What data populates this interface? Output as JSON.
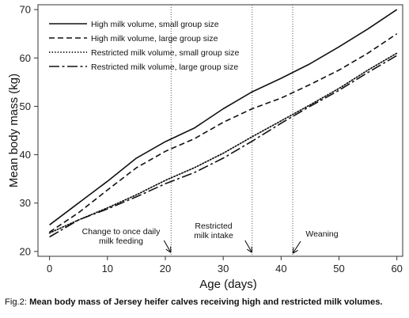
{
  "chart_data": {
    "type": "line",
    "xlabel": "Age (days)",
    "ylabel": "Mean body mass (kg)",
    "xlim": [
      -2,
      61
    ],
    "ylim": [
      19,
      71
    ],
    "xticks": [
      0,
      10,
      20,
      30,
      40,
      50,
      60
    ],
    "yticks": [
      20,
      30,
      40,
      50,
      60,
      70
    ],
    "legend_position": "top-left",
    "grid": false,
    "x": [
      0,
      5,
      10,
      15,
      20,
      25,
      30,
      35,
      40,
      45,
      50,
      55,
      60
    ],
    "series": [
      {
        "name": "High milk volume, small group size",
        "style": "solid",
        "values": [
          25.5,
          30.0,
          34.5,
          39.3,
          42.7,
          45.5,
          49.5,
          53.0,
          55.8,
          58.8,
          62.3,
          66.0,
          70.0
        ]
      },
      {
        "name": "High milk volume, large group size",
        "style": "dashed",
        "values": [
          24.0,
          28.0,
          32.7,
          37.3,
          40.7,
          43.3,
          46.7,
          49.5,
          51.7,
          54.5,
          57.5,
          61.0,
          65.0
        ]
      },
      {
        "name": "Restricted milk volume, small group size",
        "style": "dotted",
        "values": [
          23.8,
          26.5,
          29.0,
          31.7,
          34.7,
          37.3,
          40.3,
          43.7,
          47.0,
          50.3,
          53.7,
          57.5,
          61.0
        ]
      },
      {
        "name": "Restricted milk volume, large group size",
        "style": "longdash",
        "values": [
          23.0,
          26.5,
          28.8,
          31.3,
          34.0,
          36.3,
          39.3,
          42.8,
          46.5,
          50.0,
          53.3,
          57.0,
          60.5
        ]
      }
    ],
    "vlines": [
      21,
      35,
      42
    ],
    "annotations": [
      {
        "text": [
          "Change to once daily",
          "milk feeding"
        ],
        "x": 21
      },
      {
        "text": [
          "Restricted",
          "milk intake"
        ],
        "x": 35
      },
      {
        "text": [
          "Weaning"
        ],
        "x": 42
      }
    ]
  },
  "caption": {
    "prefix": "Fig.2: ",
    "text": "Mean body mass of Jersey heifer calves receiving high and restricted milk volumes."
  }
}
